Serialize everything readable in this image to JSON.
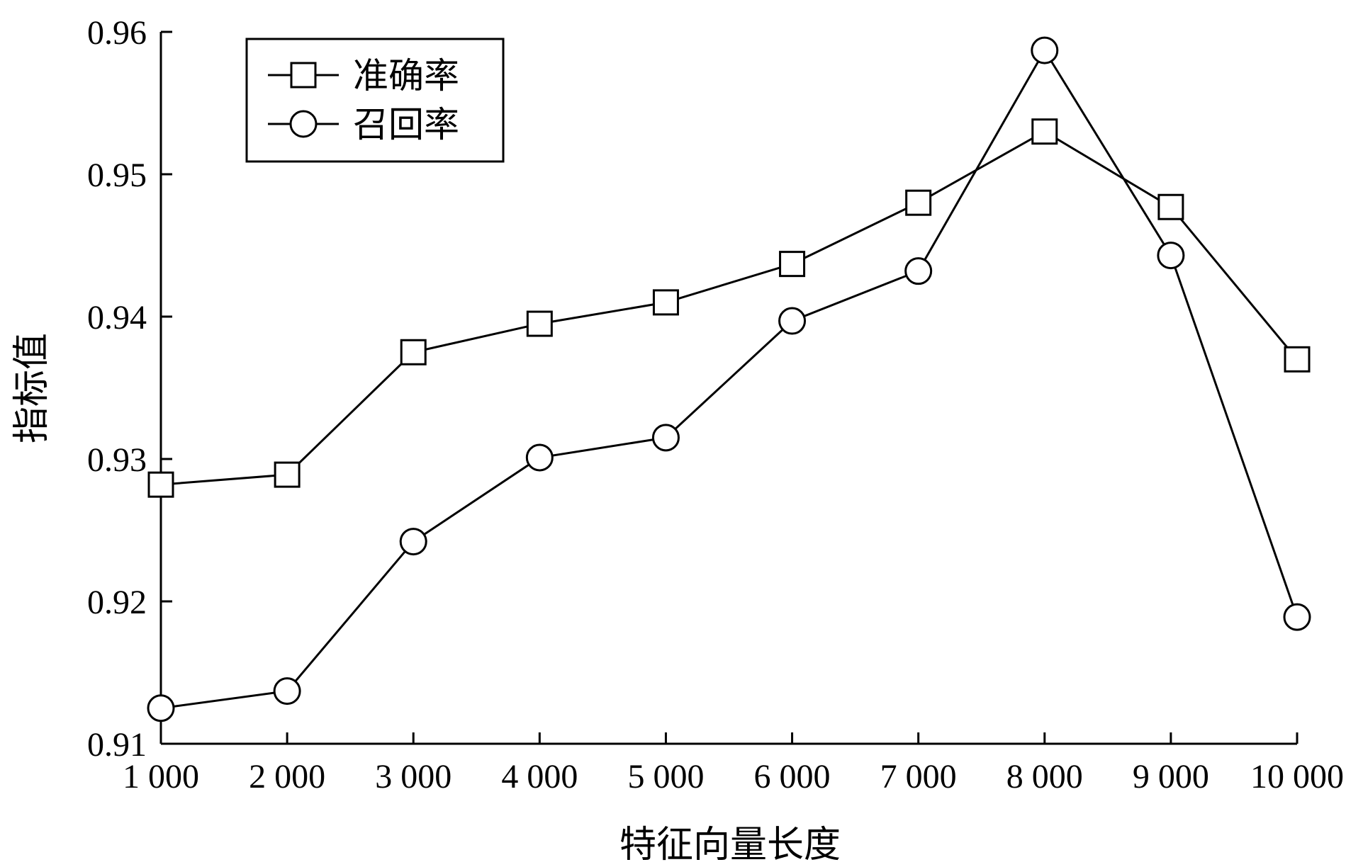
{
  "chart_data": {
    "type": "line",
    "xlabel": "特征向量长度",
    "ylabel": "指标值",
    "x": [
      1000,
      2000,
      3000,
      4000,
      5000,
      6000,
      7000,
      8000,
      9000,
      10000
    ],
    "x_tick_labels": [
      "1 000",
      "2 000",
      "3 000",
      "4 000",
      "5 000",
      "6 000",
      "7 000",
      "8 000",
      "9 000",
      "10 000"
    ],
    "y_tick_values": [
      0.91,
      0.92,
      0.93,
      0.94,
      0.95,
      0.96
    ],
    "y_tick_labels": [
      "0.91",
      "0.92",
      "0.93",
      "0.94",
      "0.95",
      "0.96"
    ],
    "xlim": [
      1000,
      10000
    ],
    "ylim": [
      0.91,
      0.96
    ],
    "grid": false,
    "legend_position": "top-left",
    "series": [
      {
        "name": "准确率",
        "marker": "square",
        "values": [
          0.9282,
          0.9289,
          0.9375,
          0.9395,
          0.941,
          0.9437,
          0.948,
          0.953,
          0.9477,
          0.937
        ]
      },
      {
        "name": "召回率",
        "marker": "circle",
        "values": [
          0.9125,
          0.9137,
          0.9242,
          0.9301,
          0.9315,
          0.9397,
          0.9432,
          0.9587,
          0.9443,
          0.9189
        ]
      }
    ]
  }
}
